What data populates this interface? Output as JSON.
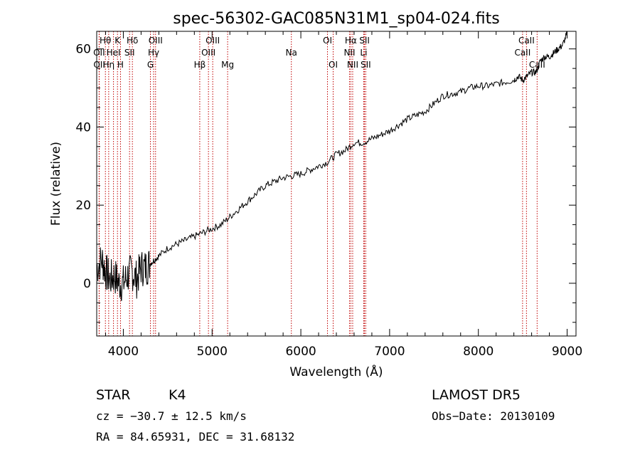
{
  "chart_data": {
    "type": "line",
    "title": "spec-56302-GAC085N31M1_sp04-024.fits",
    "xlabel": "Wavelength (Å)",
    "ylabel": "Flux (relative)",
    "xlim": [
      3700,
      9100
    ],
    "ylim": [
      -13.5,
      64.5
    ],
    "xticks": [
      4000,
      5000,
      6000,
      7000,
      8000,
      9000
    ],
    "xtick_labels": [
      "4000",
      "5000",
      "6000",
      "7000",
      "8000",
      "9000"
    ],
    "yticks": [
      0,
      20,
      40,
      60
    ],
    "ytick_labels": [
      "0",
      "20",
      "40",
      "60"
    ],
    "grid": false,
    "legend": "none",
    "series": [
      {
        "x": [
          3700,
          3760,
          3800,
          3850,
          3900,
          3950,
          4000,
          4050,
          4100,
          4150,
          4200,
          4250,
          4300,
          4350,
          4400,
          4500,
          4600,
          4700,
          4800,
          4900,
          5000,
          5100,
          5200,
          5300,
          5400,
          5500,
          5600,
          5700,
          5800,
          5900,
          6000,
          6100,
          6200,
          6300,
          6400,
          6500,
          6600,
          6700,
          6800,
          6900,
          7000,
          7100,
          7200,
          7300,
          7400,
          7500,
          7600,
          7700,
          7800,
          7900,
          8000,
          8100,
          8200,
          8300,
          8400,
          8450,
          8500,
          8550,
          8600,
          8650,
          8700,
          8750,
          8800,
          8850,
          8900,
          8950,
          9000
        ],
        "y": [
          4,
          6,
          3,
          1,
          2,
          0,
          0,
          2,
          3,
          1,
          4,
          4,
          5,
          6,
          7,
          9,
          10,
          11,
          12,
          13,
          14,
          15,
          17,
          19,
          21,
          23,
          25,
          26,
          27,
          27.5,
          28,
          29,
          30,
          31,
          33,
          34,
          36,
          36,
          37,
          38,
          39,
          40.5,
          42,
          43,
          44,
          46,
          48,
          48.5,
          49,
          50,
          50.5,
          50.5,
          51,
          51.5,
          52,
          53,
          52,
          53,
          54,
          54,
          57,
          58,
          58,
          59,
          60,
          61,
          64
        ],
        "color": "#000000"
      }
    ],
    "spectral_lines": [
      {
        "label": "Hθ",
        "wavelength": 3798,
        "row": 1
      },
      {
        "label": "OII",
        "wavelength": 3727,
        "row": 2
      },
      {
        "label": "OII",
        "wavelength": 3729,
        "row": 3
      },
      {
        "label": "Hη",
        "wavelength": 3835,
        "row": 3
      },
      {
        "label": "K",
        "wavelength": 3934,
        "row": 1
      },
      {
        "label": "HeI",
        "wavelength": 3889,
        "row": 2
      },
      {
        "label": "H",
        "wavelength": 3968,
        "row": 3
      },
      {
        "label": "Hδ",
        "wavelength": 4102,
        "row": 1
      },
      {
        "label": "SII",
        "wavelength": 4070,
        "row": 2
      },
      {
        "label": "OIII",
        "wavelength": 4363,
        "row": 1
      },
      {
        "label": "Hγ",
        "wavelength": 4341,
        "row": 2
      },
      {
        "label": "G",
        "wavelength": 4305,
        "row": 3
      },
      {
        "label": "OIII",
        "wavelength": 5007,
        "row": 1
      },
      {
        "label": "OIII",
        "wavelength": 4959,
        "row": 2
      },
      {
        "label": "Hβ",
        "wavelength": 4861,
        "row": 3
      },
      {
        "label": "Mg",
        "wavelength": 5175,
        "row": 3
      },
      {
        "label": "Na",
        "wavelength": 5893,
        "row": 2
      },
      {
        "label": "OI",
        "wavelength": 6300,
        "row": 1
      },
      {
        "label": "OI",
        "wavelength": 6364,
        "row": 3
      },
      {
        "label": "Hα",
        "wavelength": 6563,
        "row": 1
      },
      {
        "label": "NII",
        "wavelength": 6548,
        "row": 2
      },
      {
        "label": "NII",
        "wavelength": 6584,
        "row": 3
      },
      {
        "label": "SII",
        "wavelength": 6717,
        "row": 1
      },
      {
        "label": "Li",
        "wavelength": 6708,
        "row": 2
      },
      {
        "label": "SII",
        "wavelength": 6731,
        "row": 3
      },
      {
        "label": "CaII",
        "wavelength": 8542,
        "row": 1
      },
      {
        "label": "CaII",
        "wavelength": 8498,
        "row": 2
      },
      {
        "label": "CaII",
        "wavelength": 8662,
        "row": 3
      }
    ]
  },
  "info": {
    "class": "STAR",
    "subclass": "K4",
    "survey": "LAMOST DR5",
    "cz": "cz = −30.7 ± 12.5 km/s",
    "obs_date": "Obs−Date: 20130109",
    "coords": "RA =  84.65931, DEC =  31.68132"
  }
}
